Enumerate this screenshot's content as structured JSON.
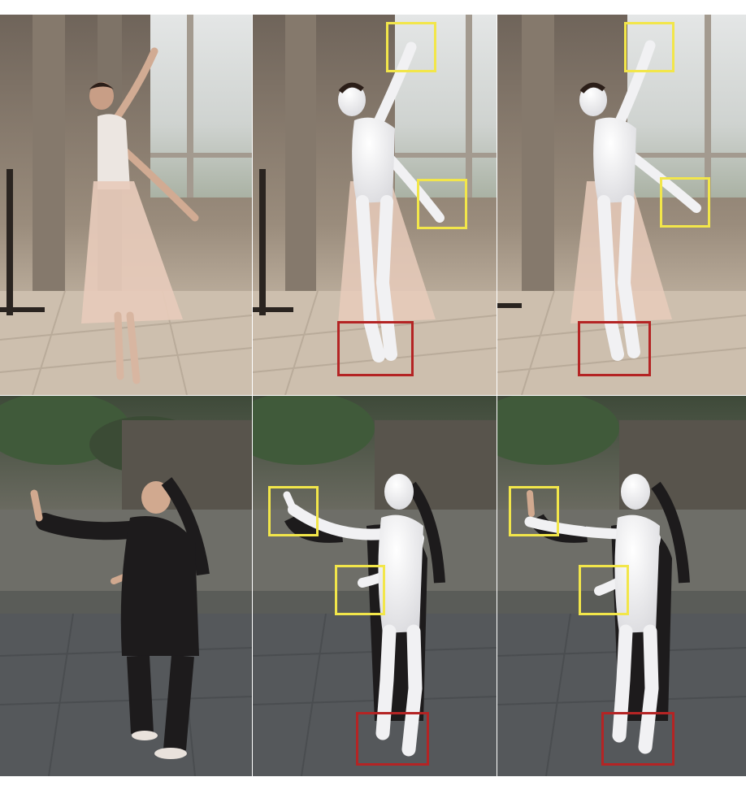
{
  "figure": {
    "rows": [
      {
        "scene": "ballet-studio",
        "panels": [
          {
            "kind": "input-photo",
            "highlights": []
          },
          {
            "kind": "mesh-overlay",
            "highlights": [
              {
                "color": "yellow",
                "region": "raised-hand"
              },
              {
                "color": "yellow",
                "region": "lowered-hand"
              },
              {
                "color": "red",
                "region": "feet"
              }
            ]
          },
          {
            "kind": "mesh-overlay",
            "highlights": [
              {
                "color": "yellow",
                "region": "raised-hand"
              },
              {
                "color": "yellow",
                "region": "lowered-hand"
              },
              {
                "color": "red",
                "region": "feet"
              }
            ]
          }
        ]
      },
      {
        "scene": "tai-chi-courtyard",
        "panels": [
          {
            "kind": "input-photo",
            "highlights": []
          },
          {
            "kind": "mesh-overlay",
            "highlights": [
              {
                "color": "yellow",
                "region": "raised-hand"
              },
              {
                "color": "yellow",
                "region": "lowered-hand"
              },
              {
                "color": "red",
                "region": "feet"
              }
            ]
          },
          {
            "kind": "mesh-overlay",
            "highlights": [
              {
                "color": "yellow",
                "region": "raised-hand"
              },
              {
                "color": "yellow",
                "region": "lowered-hand"
              },
              {
                "color": "red",
                "region": "feet"
              }
            ]
          }
        ]
      }
    ],
    "colors": {
      "highlight_yellow": "#f2e64a",
      "highlight_red": "#b42424",
      "mesh_white": "#f1f1f3",
      "studio_wall": "#8d8070",
      "studio_floor": "#cdbfae",
      "courtyard_ground": "#55585b",
      "dancer_tutu": "#e7cbbb",
      "taichi_clothing": "#1d1b1c"
    }
  }
}
